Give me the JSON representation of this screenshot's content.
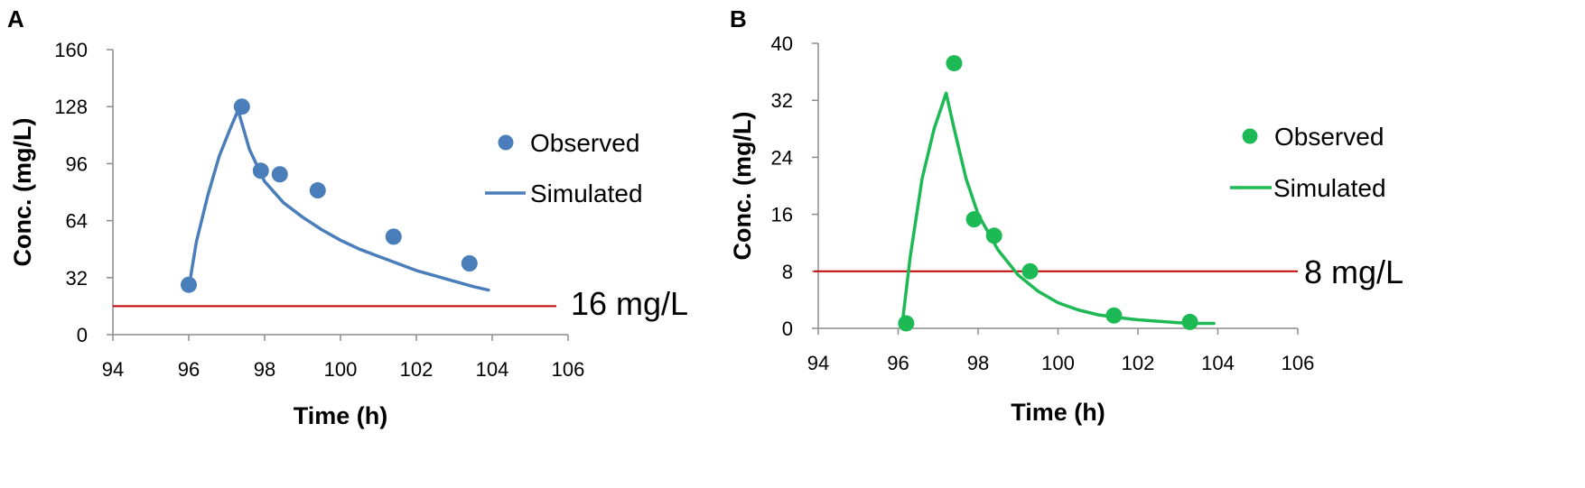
{
  "chart_data": [
    {
      "panel_label": "A",
      "type": "line",
      "xlabel": "Time (h)",
      "ylabel": "Conc. (mg/L)",
      "xlim": [
        94,
        106
      ],
      "ylim": [
        0,
        160
      ],
      "xticks": [
        94,
        96,
        98,
        100,
        102,
        104,
        106
      ],
      "yticks": [
        0,
        32,
        64,
        96,
        128,
        160
      ],
      "grid": false,
      "color": "#4a7ebb",
      "observed": {
        "name": "Observed",
        "x": [
          96.0,
          97.4,
          97.9,
          98.4,
          99.4,
          101.4,
          103.4
        ],
        "y": [
          28,
          128,
          92,
          90,
          81,
          55,
          40
        ]
      },
      "simulated": {
        "name": "Simulated",
        "x": [
          96.0,
          96.2,
          96.5,
          96.8,
          97.1,
          97.3,
          97.6,
          98.0,
          98.5,
          99.0,
          99.5,
          100.0,
          100.5,
          101.0,
          101.5,
          102.0,
          102.5,
          103.0,
          103.5,
          103.9
        ],
        "y": [
          26,
          52,
          78,
          100,
          116,
          126,
          104,
          86,
          74,
          66,
          59,
          53,
          48,
          44,
          40,
          36,
          33,
          30,
          27,
          25
        ]
      },
      "threshold": {
        "value": 16,
        "label": "16 mg/L",
        "color": "#c00000"
      },
      "legend": "right"
    },
    {
      "panel_label": "B",
      "type": "line",
      "xlabel": "Time (h)",
      "ylabel": "Conc. (mg/L)",
      "xlim": [
        94,
        106
      ],
      "ylim": [
        0,
        40
      ],
      "xticks": [
        94,
        96,
        98,
        100,
        102,
        104,
        106
      ],
      "yticks": [
        0,
        8,
        16,
        24,
        32,
        40
      ],
      "grid": false,
      "color": "#1db954",
      "observed": {
        "name": "Observed",
        "x": [
          96.2,
          97.4,
          97.9,
          98.4,
          99.3,
          101.4,
          103.3
        ],
        "y": [
          0.7,
          37.2,
          15.3,
          13.0,
          8.0,
          1.8,
          0.9
        ]
      },
      "simulated": {
        "name": "Simulated",
        "x": [
          96.1,
          96.3,
          96.6,
          96.9,
          97.2,
          97.4,
          97.7,
          98.0,
          98.5,
          99.0,
          99.5,
          100.0,
          100.5,
          101.0,
          101.5,
          102.0,
          102.5,
          103.0,
          103.5,
          103.9
        ],
        "y": [
          0.5,
          10,
          21,
          28,
          33,
          28,
          21,
          16,
          11,
          7.5,
          5.2,
          3.6,
          2.6,
          1.9,
          1.5,
          1.2,
          1.0,
          0.8,
          0.7,
          0.7
        ]
      },
      "threshold": {
        "value": 8,
        "label": "8 mg/L",
        "color": "#c00000"
      },
      "legend": "right"
    }
  ]
}
